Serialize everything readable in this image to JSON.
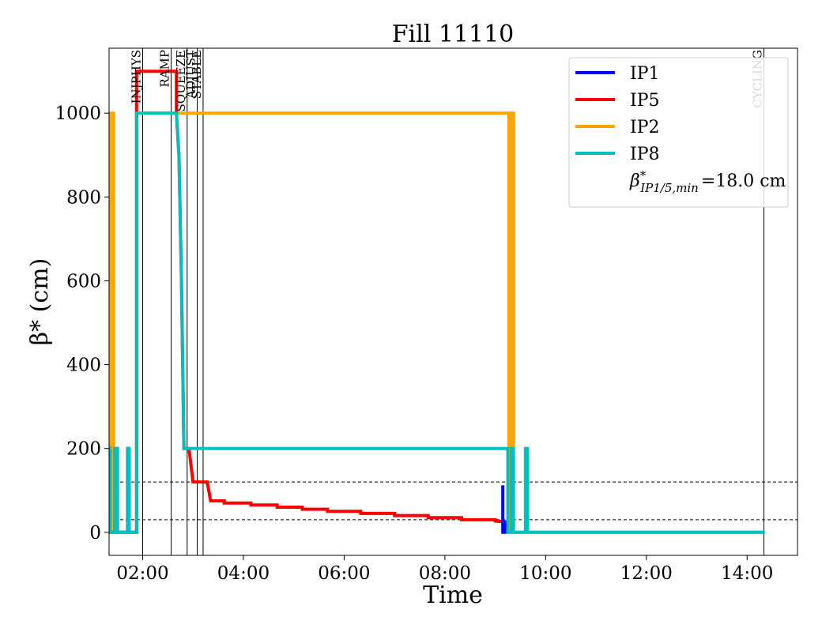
{
  "chart_data": {
    "type": "line",
    "title": "Fill 11110",
    "xlabel": "Time",
    "ylabel": "β* (cm)",
    "x_unit": "hours (time of day)",
    "xlim": [
      "01:20",
      "15:00"
    ],
    "ylim": [
      -55,
      1155
    ],
    "x_ticks": [
      {
        "x": 2,
        "label": "02:00"
      },
      {
        "x": 4,
        "label": "04:00"
      },
      {
        "x": 6,
        "label": "06:00"
      },
      {
        "x": 8,
        "label": "08:00"
      },
      {
        "x": 10,
        "label": "10:00"
      },
      {
        "x": 12,
        "label": "12:00"
      },
      {
        "x": 14,
        "label": "14:00"
      }
    ],
    "y_ticks": [
      0,
      200,
      400,
      600,
      800,
      1000
    ],
    "grid": false,
    "legend_position": "top-right",
    "legend_note": "β*IP1/5,min = 18.0 cm",
    "phase_markers": [
      {
        "label": "INJPHYS",
        "x": "02:00"
      },
      {
        "label": "RAMP",
        "x": "02:34"
      },
      {
        "label": "SQUEEZE",
        "x": "02:53"
      },
      {
        "label": "ADJUST",
        "x": "03:05"
      },
      {
        "label": "STABLE",
        "x": "03:12"
      },
      {
        "label": "CYCLING",
        "x": "14:20"
      }
    ],
    "reference_lines": [
      {
        "y": 30,
        "style": "dashed"
      },
      {
        "y": 120,
        "style": "dashed"
      }
    ],
    "series": [
      {
        "name": "IP2",
        "color": "#ffa500",
        "points": [
          [
            1.3,
            0
          ],
          [
            1.3,
            1000
          ],
          [
            1.35,
            1000
          ],
          [
            1.35,
            0
          ],
          [
            1.38,
            0
          ],
          [
            1.38,
            1000
          ],
          [
            1.42,
            1000
          ],
          [
            1.42,
            0
          ],
          [
            1.88,
            0
          ],
          [
            1.88,
            1000
          ],
          [
            9.27,
            1000
          ],
          [
            9.27,
            0
          ],
          [
            9.33,
            0
          ],
          [
            9.33,
            1000
          ],
          [
            9.36,
            1000
          ],
          [
            9.36,
            0
          ],
          [
            14.35,
            0
          ]
        ]
      },
      {
        "name": "IP5",
        "color": "#ff0000",
        "points": [
          [
            1.3,
            0
          ],
          [
            1.3,
            200
          ],
          [
            1.35,
            200
          ],
          [
            1.35,
            0
          ],
          [
            1.45,
            0
          ],
          [
            1.45,
            200
          ],
          [
            1.5,
            200
          ],
          [
            1.5,
            0
          ],
          [
            1.7,
            0
          ],
          [
            1.7,
            200
          ],
          [
            1.73,
            200
          ],
          [
            1.73,
            0
          ],
          [
            1.88,
            0
          ],
          [
            1.88,
            1100
          ],
          [
            2.67,
            1100
          ],
          [
            2.67,
            1000
          ],
          [
            2.72,
            900
          ],
          [
            2.77,
            600
          ],
          [
            2.82,
            200
          ],
          [
            2.92,
            200
          ],
          [
            3.0,
            120
          ],
          [
            3.28,
            120
          ],
          [
            3.35,
            75
          ],
          [
            3.62,
            75
          ],
          [
            3.62,
            70
          ],
          [
            4.15,
            70
          ],
          [
            4.15,
            65
          ],
          [
            4.67,
            65
          ],
          [
            4.67,
            60
          ],
          [
            5.17,
            60
          ],
          [
            5.17,
            55
          ],
          [
            5.67,
            55
          ],
          [
            5.67,
            50
          ],
          [
            6.33,
            50
          ],
          [
            6.33,
            45
          ],
          [
            7.0,
            45
          ],
          [
            7.0,
            40
          ],
          [
            7.67,
            40
          ],
          [
            7.67,
            35
          ],
          [
            8.33,
            35
          ],
          [
            8.33,
            30
          ],
          [
            9.0,
            30
          ],
          [
            9.0,
            27
          ],
          [
            9.2,
            25
          ]
        ]
      },
      {
        "name": "IP1",
        "color": "#0000ff",
        "points": [
          [
            9.15,
            112
          ],
          [
            9.15,
            0
          ],
          [
            9.2,
            0
          ],
          [
            9.2,
            25
          ],
          [
            9.25,
            25
          ],
          [
            9.25,
            0
          ]
        ]
      },
      {
        "name": "IP8",
        "color": "#00bfbf",
        "points": [
          [
            1.3,
            0
          ],
          [
            1.3,
            200
          ],
          [
            1.35,
            200
          ],
          [
            1.35,
            0
          ],
          [
            1.45,
            0
          ],
          [
            1.45,
            200
          ],
          [
            1.5,
            200
          ],
          [
            1.5,
            0
          ],
          [
            1.7,
            0
          ],
          [
            1.7,
            200
          ],
          [
            1.73,
            200
          ],
          [
            1.73,
            0
          ],
          [
            1.88,
            0
          ],
          [
            1.88,
            1000
          ],
          [
            2.67,
            1000
          ],
          [
            2.72,
            900
          ],
          [
            2.77,
            600
          ],
          [
            2.82,
            200
          ],
          [
            9.25,
            200
          ],
          [
            9.25,
            0
          ],
          [
            9.32,
            0
          ],
          [
            9.32,
            200
          ],
          [
            9.36,
            200
          ],
          [
            9.36,
            0
          ],
          [
            9.6,
            0
          ],
          [
            9.6,
            200
          ],
          [
            9.64,
            200
          ],
          [
            9.64,
            0
          ],
          [
            14.35,
            0
          ]
        ]
      }
    ]
  }
}
